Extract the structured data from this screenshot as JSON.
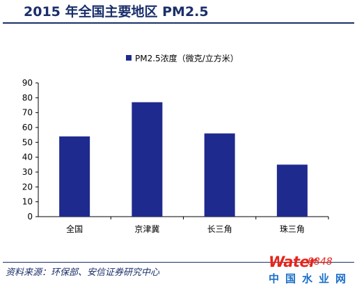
{
  "header": {
    "title": "2015 年全国主要地区 PM2.5"
  },
  "footer": {
    "source": "资料来源：环保部、安信证券研究中心"
  },
  "logo": {
    "word": "Water",
    "number": "8848",
    "sub": "中国水业网"
  },
  "chart_data": {
    "type": "bar",
    "title": "2015 年全国主要地区 PM2.5",
    "categories": [
      "全国",
      "京津冀",
      "长三角",
      "珠三角"
    ],
    "series": [
      {
        "name": "PM2.5浓度（微克/立方米）",
        "values": [
          54,
          77,
          56,
          35
        ],
        "color": "#1f2a8e"
      }
    ],
    "ylim": [
      0,
      90
    ],
    "yticks": [
      0,
      10,
      20,
      30,
      40,
      50,
      60,
      70,
      80,
      90
    ],
    "legend": "top-center",
    "grid": false
  }
}
